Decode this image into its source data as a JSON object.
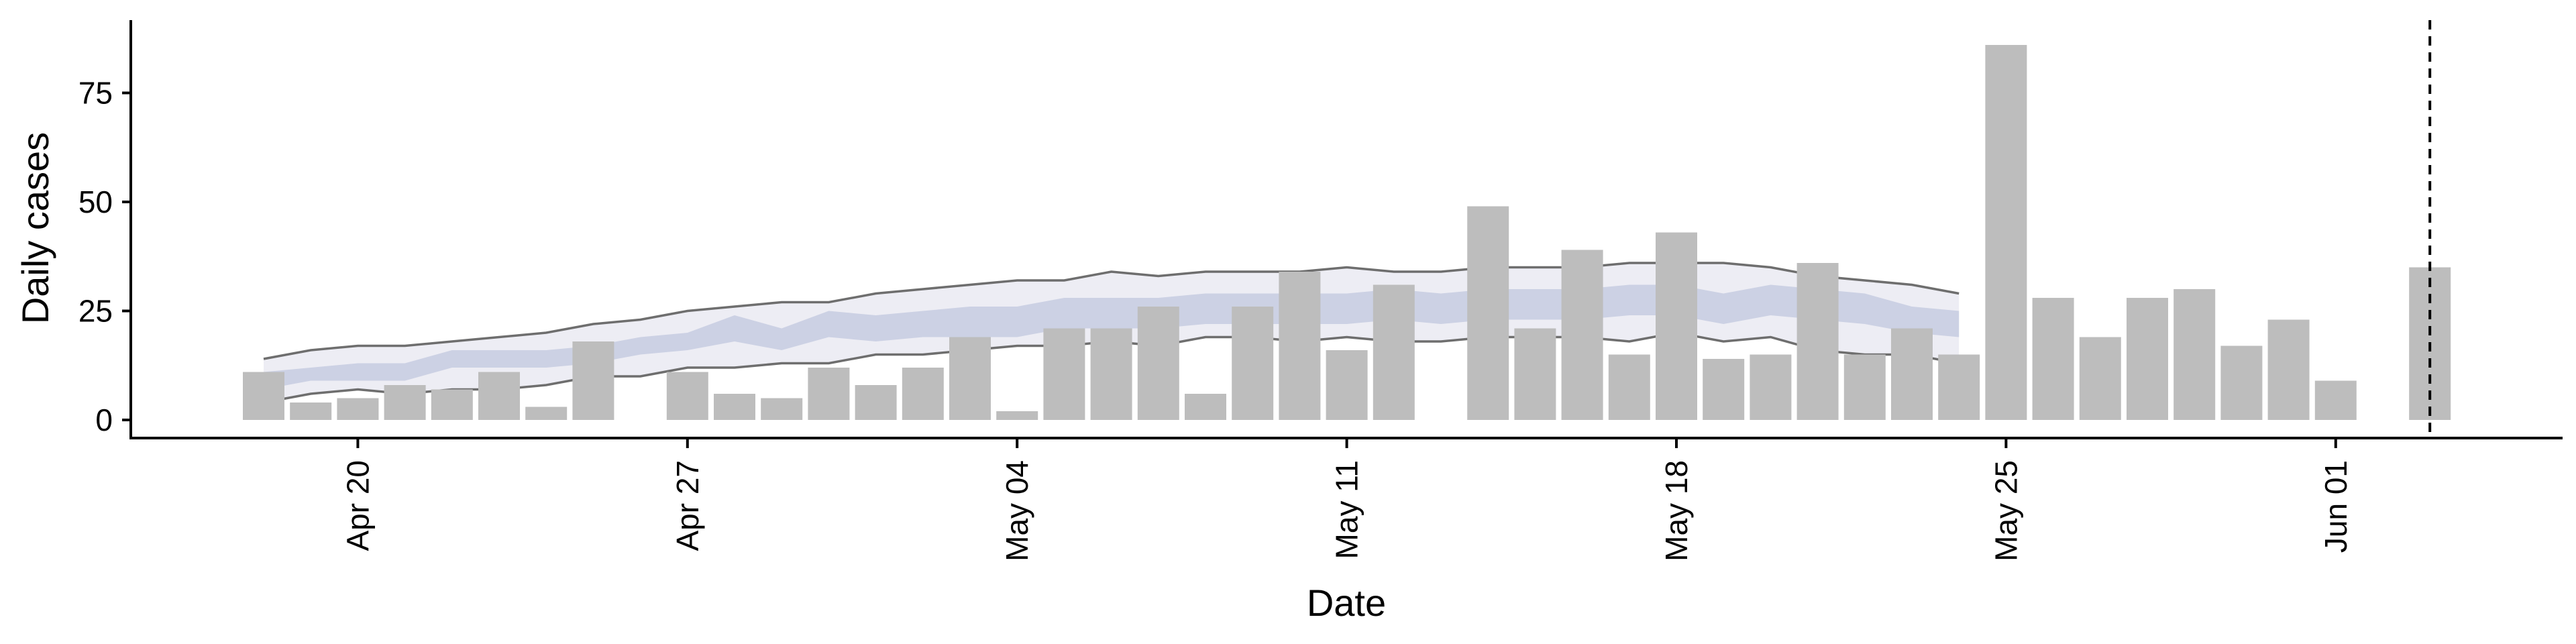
{
  "chart_data": {
    "type": "bar",
    "title": "",
    "xlabel": "Date",
    "ylabel": "Daily cases",
    "x_start": "2020-04-18",
    "dates": [
      "2020-04-18",
      "2020-04-19",
      "2020-04-20",
      "2020-04-21",
      "2020-04-22",
      "2020-04-23",
      "2020-04-24",
      "2020-04-25",
      "2020-04-26",
      "2020-04-27",
      "2020-04-28",
      "2020-04-29",
      "2020-04-30",
      "2020-05-01",
      "2020-05-02",
      "2020-05-03",
      "2020-05-04",
      "2020-05-05",
      "2020-05-06",
      "2020-05-07",
      "2020-05-08",
      "2020-05-09",
      "2020-05-10",
      "2020-05-11",
      "2020-05-12",
      "2020-05-13",
      "2020-05-14",
      "2020-05-15",
      "2020-05-16",
      "2020-05-17",
      "2020-05-18",
      "2020-05-19",
      "2020-05-20",
      "2020-05-21",
      "2020-05-22",
      "2020-05-23",
      "2020-05-24",
      "2020-05-25",
      "2020-05-26",
      "2020-05-27",
      "2020-05-28",
      "2020-05-29",
      "2020-05-30",
      "2020-05-31",
      "2020-06-01",
      "2020-06-02",
      "2020-06-03"
    ],
    "values": [
      11,
      4,
      5,
      8,
      7,
      11,
      3,
      18,
      0,
      11,
      6,
      5,
      12,
      8,
      12,
      19,
      2,
      21,
      21,
      26,
      6,
      26,
      34,
      16,
      31,
      0,
      49,
      21,
      39,
      15,
      43,
      14,
      15,
      36,
      15,
      21,
      15,
      86,
      28,
      19,
      28,
      30,
      17,
      23,
      9,
      0,
      35
    ],
    "nowcast": {
      "dates": [
        "2020-04-18",
        "2020-04-19",
        "2020-04-20",
        "2020-04-21",
        "2020-04-22",
        "2020-04-23",
        "2020-04-24",
        "2020-04-25",
        "2020-04-26",
        "2020-04-27",
        "2020-04-28",
        "2020-04-29",
        "2020-04-30",
        "2020-05-01",
        "2020-05-02",
        "2020-05-03",
        "2020-05-04",
        "2020-05-05",
        "2020-05-06",
        "2020-05-07",
        "2020-05-08",
        "2020-05-09",
        "2020-05-10",
        "2020-05-11",
        "2020-05-12",
        "2020-05-13",
        "2020-05-14",
        "2020-05-15",
        "2020-05-16",
        "2020-05-17",
        "2020-05-18",
        "2020-05-19",
        "2020-05-20",
        "2020-05-21",
        "2020-05-22",
        "2020-05-23",
        "2020-05-24"
      ],
      "lower_90": [
        4,
        6,
        7,
        6,
        7,
        7,
        8,
        10,
        10,
        12,
        12,
        13,
        13,
        15,
        15,
        16,
        17,
        17,
        18,
        17,
        19,
        19,
        18,
        19,
        18,
        18,
        19,
        19,
        19,
        18,
        20,
        18,
        19,
        16,
        15,
        15,
        13
      ],
      "upper_90": [
        14,
        16,
        17,
        17,
        18,
        19,
        20,
        22,
        23,
        25,
        26,
        27,
        27,
        29,
        30,
        31,
        32,
        32,
        34,
        33,
        34,
        34,
        34,
        35,
        34,
        34,
        35,
        35,
        35,
        36,
        36,
        36,
        35,
        33,
        32,
        31,
        29
      ],
      "lower_50": [
        7,
        9,
        9,
        9,
        12,
        12,
        12,
        13,
        15,
        16,
        18,
        16,
        19,
        18,
        19,
        19,
        19,
        21,
        21,
        21,
        22,
        22,
        22,
        22,
        23,
        22,
        23,
        23,
        23,
        24,
        24,
        22,
        24,
        23,
        22,
        20,
        19
      ],
      "upper_50": [
        11,
        12,
        13,
        13,
        16,
        16,
        16,
        17,
        19,
        20,
        24,
        21,
        25,
        24,
        25,
        26,
        26,
        28,
        28,
        28,
        29,
        29,
        29,
        29,
        30,
        29,
        30,
        30,
        30,
        31,
        31,
        29,
        31,
        30,
        29,
        26,
        25
      ]
    },
    "forecast_start_date": "2020-06-03",
    "x_ticks": [
      {
        "date": "2020-04-20",
        "label": "Apr 20"
      },
      {
        "date": "2020-04-27",
        "label": "Apr 27"
      },
      {
        "date": "2020-05-04",
        "label": "May 04"
      },
      {
        "date": "2020-05-11",
        "label": "May 11"
      },
      {
        "date": "2020-05-18",
        "label": "May 18"
      },
      {
        "date": "2020-05-25",
        "label": "May 25"
      },
      {
        "date": "2020-06-01",
        "label": "Jun 01"
      }
    ],
    "y_ticks": [
      0,
      25,
      50,
      75
    ],
    "ylim": [
      -4,
      90
    ],
    "grid": false,
    "legend": "none",
    "colors": {
      "bar": "#bdbdbd",
      "band_90": "#e7e7f0",
      "band_50": "#c5cbe0",
      "band_edge": "#6e6e6e",
      "axis": "#000000",
      "forecast_line": "#000000"
    }
  }
}
